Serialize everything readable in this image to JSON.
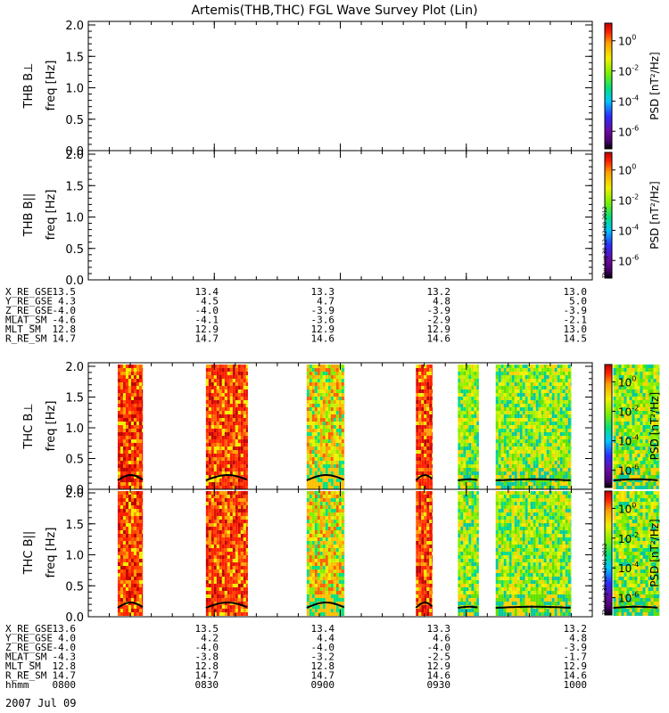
{
  "title": "Artemis(THB,THC) FGL Wave Survey Plot (Lin)",
  "panels": [
    {
      "name": "THB B⊥",
      "ylabel": "freq [Hz]",
      "yticks": [
        "0.0",
        "0.5",
        "1.0",
        "1.5",
        "2.0"
      ]
    },
    {
      "name": "THB B||",
      "ylabel": "freq [Hz]",
      "yticks": [
        "0.0",
        "0.5",
        "1.0",
        "1.5",
        "2.0"
      ]
    },
    {
      "name": "THC B⊥",
      "ylabel": "freq [Hz]",
      "yticks": [
        "0.0",
        "0.5",
        "1.0",
        "1.5",
        "2.0"
      ]
    },
    {
      "name": "THC B||",
      "ylabel": "freq [Hz]",
      "yticks": [
        "0.0",
        "0.5",
        "1.0",
        "1.5",
        "2.0"
      ]
    }
  ],
  "colorbar": {
    "label": "PSD [nT²/Hz]",
    "ticks": [
      {
        "base": "10",
        "exp": "0"
      },
      {
        "base": "10",
        "exp": "-2"
      },
      {
        "base": "10",
        "exp": "-4"
      },
      {
        "base": "10",
        "exp": "-6"
      }
    ],
    "colors": [
      "#000000",
      "#6a0aa0",
      "#2c2cff",
      "#00c8ff",
      "#00e080",
      "#7cf000",
      "#f0f000",
      "#ffa000",
      "#ff2000",
      "#c00000"
    ]
  },
  "stamps": [
    "Thu Aug 30 12:42:00 2012",
    "Thu Aug 30 12:42:01 2012"
  ],
  "ephem_thb": {
    "rows": [
      {
        "label": "X_RE_GSE",
        "values": [
          "13.5",
          "13.4",
          "13.3",
          "13.2",
          "13.0"
        ]
      },
      {
        "label": "Y_RE_GSE",
        "values": [
          "4.3",
          "4.5",
          "4.7",
          "4.8",
          "5.0"
        ]
      },
      {
        "label": "Z_RE_GSE",
        "values": [
          "-4.0",
          "-4.0",
          "-3.9",
          "-3.9",
          "-3.9"
        ]
      },
      {
        "label": "MLAT_SM",
        "values": [
          "-4.6",
          "-4.1",
          "-3.6",
          "-2.9",
          "-2.1"
        ]
      },
      {
        "label": "MLT_SM",
        "values": [
          "12.8",
          "12.9",
          "12.9",
          "12.9",
          "13.0"
        ]
      },
      {
        "label": "R_RE_SM",
        "values": [
          "14.7",
          "14.7",
          "14.6",
          "14.6",
          "14.5"
        ]
      }
    ]
  },
  "ephem_thc": {
    "rows": [
      {
        "label": "X_RE_GSE",
        "values": [
          "13.6",
          "13.5",
          "13.4",
          "13.3",
          "13.2"
        ]
      },
      {
        "label": "Y_RE_GSE",
        "values": [
          "4.0",
          "4.2",
          "4.4",
          "4.6",
          "4.8"
        ]
      },
      {
        "label": "Z_RE_GSE",
        "values": [
          "-4.0",
          "-4.0",
          "-4.0",
          "-4.0",
          "-3.9"
        ]
      },
      {
        "label": "MLAT_SM",
        "values": [
          "-4.3",
          "-3.8",
          "-3.2",
          "-2.5",
          "-1.7"
        ]
      },
      {
        "label": "MLT_SM",
        "values": [
          "12.8",
          "12.8",
          "12.8",
          "12.9",
          "12.9"
        ]
      },
      {
        "label": "R_RE_SM",
        "values": [
          "14.7",
          "14.7",
          "14.7",
          "14.6",
          "14.6"
        ]
      },
      {
        "label": "hhmm",
        "values": [
          "0800",
          "0830",
          "0900",
          "0930",
          "1000"
        ]
      }
    ]
  },
  "date": "2007 Jul 09",
  "chart_data": {
    "type": "heatmap",
    "title": "Artemis(THB,THC) FGL Wave Survey Plot (Lin)",
    "xlabel": "hhmm",
    "x_ticks": [
      "0800",
      "0830",
      "0900",
      "0930",
      "1000"
    ],
    "x_range_min": [
      480,
      600
    ],
    "ylim": [
      0,
      2.0
    ],
    "zlabel": "PSD [nT²/Hz]",
    "zlog": true,
    "series": [
      {
        "name": "THB B⊥",
        "segments": []
      },
      {
        "name": "THB B||",
        "segments": []
      },
      {
        "name": "THC B⊥",
        "segments": [
          {
            "start_min": 487,
            "end_min": 493,
            "level": "high"
          },
          {
            "start_min": 508,
            "end_min": 518,
            "level": "high"
          },
          {
            "start_min": 532,
            "end_min": 541,
            "level": "medium"
          },
          {
            "start_min": 558,
            "end_min": 562,
            "level": "high"
          },
          {
            "start_min": 568,
            "end_min": 573,
            "level": "low"
          },
          {
            "start_min": 577,
            "end_min": 595,
            "level": "low"
          },
          {
            "start_min": 605,
            "end_min": 616,
            "level": "low"
          }
        ]
      },
      {
        "name": "THC B||",
        "segments": [
          {
            "start_min": 487,
            "end_min": 493,
            "level": "high"
          },
          {
            "start_min": 508,
            "end_min": 518,
            "level": "high"
          },
          {
            "start_min": 532,
            "end_min": 541,
            "level": "medium"
          },
          {
            "start_min": 558,
            "end_min": 562,
            "level": "high"
          },
          {
            "start_min": 568,
            "end_min": 573,
            "level": "low"
          },
          {
            "start_min": 577,
            "end_min": 595,
            "level": "low"
          },
          {
            "start_min": 605,
            "end_min": 616,
            "level": "low"
          }
        ]
      }
    ]
  }
}
